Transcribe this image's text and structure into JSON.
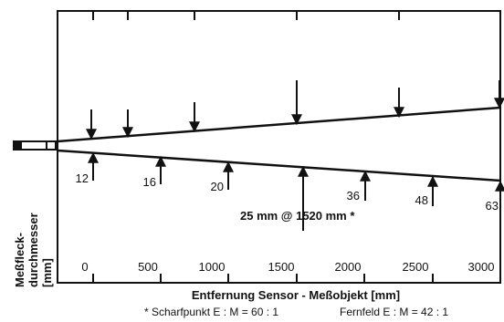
{
  "diagram": {
    "y_axis_label_line1": "Meßfleck-",
    "y_axis_label_line2": "durchmesser",
    "y_axis_label_line3": "[mm]",
    "x_axis_title": "Entfernung Sensor - Meßobjekt [mm]",
    "x_ticks": [
      "0",
      "500",
      "1000",
      "1500",
      "2000",
      "2500",
      "3000"
    ],
    "spot_sizes": [
      "12",
      "16",
      "20",
      "36",
      "48",
      "63"
    ],
    "focus_label": "25 mm @ 1520 mm *",
    "footnote_focus": "* Scharfpunkt E : M = 60 : 1",
    "footnote_far": "Fernfeld E : M = 42 : 1"
  }
}
